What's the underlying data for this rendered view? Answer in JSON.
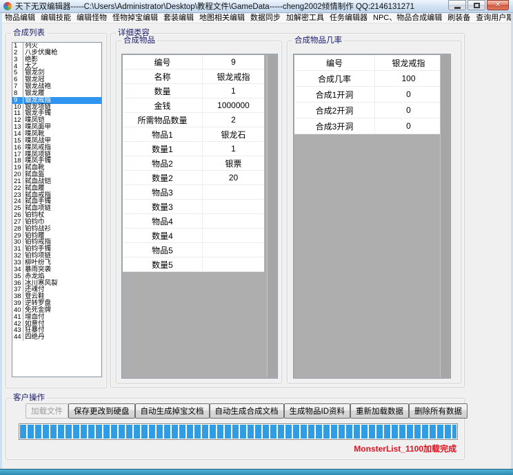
{
  "window": {
    "title": "天下无双编辑器-----C:\\Users\\Administrator\\Desktop\\教程文件\\GameData-----cheng2002倾情制作  QQ:2146131271",
    "controls": [
      {
        "name": "minimize"
      },
      {
        "name": "maximize"
      },
      {
        "name": "close",
        "glyph": "✕"
      }
    ]
  },
  "colors": {
    "titlebar": "#cfe0f2",
    "selection_blue": "#2f94ef",
    "progress_blue": "#2f9de4",
    "status_red": "#e1111e",
    "close_red": "#cf5a40",
    "groupbox_title": "#1b1b6b",
    "grid_gray": "#aeaeae"
  },
  "menu": {
    "items": [
      {
        "label": "物品编辑"
      },
      {
        "label": "编辑技能"
      },
      {
        "label": "编辑怪物"
      },
      {
        "label": "怪物掉宝编辑"
      },
      {
        "label": "套装编辑"
      },
      {
        "label": "地图相关编辑"
      },
      {
        "label": "数据同步"
      },
      {
        "label": "加解密工具"
      },
      {
        "label": "任务编辑器"
      },
      {
        "label": "NPC、物品合成编辑"
      },
      {
        "label": "刷装备"
      },
      {
        "label": "查询用户期限"
      }
    ]
  },
  "synthesis_list": {
    "title": "合成列表",
    "selected_number": 9,
    "items": [
      {
        "num": 1,
        "name": "列火"
      },
      {
        "num": 2,
        "name": "八步伏魔枪"
      },
      {
        "num": 3,
        "name": "绝影"
      },
      {
        "num": 4,
        "name": "太乙"
      },
      {
        "num": 5,
        "name": "银龙剑"
      },
      {
        "num": 6,
        "name": "银龙冠"
      },
      {
        "num": 7,
        "name": "银龙战袍"
      },
      {
        "num": 8,
        "name": "银龙履"
      },
      {
        "num": 9,
        "name": "银龙戒指",
        "selected": true
      },
      {
        "num": 10,
        "name": "银龙项链"
      },
      {
        "num": 11,
        "name": "银龙手镯"
      },
      {
        "num": 12,
        "name": "喋凤铠"
      },
      {
        "num": 13,
        "name": "喋凤面甲"
      },
      {
        "num": 14,
        "name": "喋凤靴"
      },
      {
        "num": 15,
        "name": "喋凤战甲"
      },
      {
        "num": 16,
        "name": "喋凤戒指"
      },
      {
        "num": 17,
        "name": "喋凤项链"
      },
      {
        "num": 18,
        "name": "喋凤手镯"
      },
      {
        "num": 19,
        "name": "弑血靴"
      },
      {
        "num": 20,
        "name": "弑血盔"
      },
      {
        "num": 21,
        "name": "弑血战铠"
      },
      {
        "num": 22,
        "name": "弑血履"
      },
      {
        "num": 23,
        "name": "弑血戒指"
      },
      {
        "num": 24,
        "name": "弑血手镯"
      },
      {
        "num": 25,
        "name": "弑血项链"
      },
      {
        "num": 26,
        "name": "铂钧杖"
      },
      {
        "num": 27,
        "name": "铂钧巾"
      },
      {
        "num": 28,
        "name": "铂钧战衫"
      },
      {
        "num": 29,
        "name": "铂钧履"
      },
      {
        "num": 30,
        "name": "铂钧戒指"
      },
      {
        "num": 31,
        "name": "铂钧手镯"
      },
      {
        "num": 32,
        "name": "铂钧项链"
      },
      {
        "num": 33,
        "name": "柳叶纷飞"
      },
      {
        "num": 34,
        "name": "暴雨突袭"
      },
      {
        "num": 35,
        "name": "赤龙焰"
      },
      {
        "num": 36,
        "name": "冰川寒风裂"
      },
      {
        "num": 37,
        "name": "还魂付"
      },
      {
        "num": 38,
        "name": "登云鞋"
      },
      {
        "num": 39,
        "name": "逆转罗盘"
      },
      {
        "num": 40,
        "name": "免死金牌"
      },
      {
        "num": 41,
        "name": "增血付"
      },
      {
        "num": 42,
        "name": "如意付"
      },
      {
        "num": 43,
        "name": "狂暴付"
      },
      {
        "num": 44,
        "name": "四绝丹"
      }
    ]
  },
  "detail": {
    "title": "详细类容",
    "item_group": {
      "title": "合成物品",
      "rows": [
        {
          "label": "编号",
          "value": "9"
        },
        {
          "label": "名称",
          "value": "银龙戒指"
        },
        {
          "label": "数量",
          "value": "1"
        },
        {
          "label": "金钱",
          "value": "1000000"
        },
        {
          "label": "所需物品数量",
          "value": "2"
        },
        {
          "label": "物品1",
          "value": "银龙石"
        },
        {
          "label": "数量1",
          "value": "1"
        },
        {
          "label": "物品2",
          "value": "银票"
        },
        {
          "label": "数量2",
          "value": "20"
        },
        {
          "label": "物品3",
          "value": ""
        },
        {
          "label": "数量3",
          "value": ""
        },
        {
          "label": "物品4",
          "value": ""
        },
        {
          "label": "数量4",
          "value": ""
        },
        {
          "label": "物品5",
          "value": ""
        },
        {
          "label": "数量5",
          "value": ""
        }
      ]
    },
    "chance_group": {
      "title": "合成物品几率",
      "rows": [
        {
          "label": "编号",
          "value": "银龙戒指"
        },
        {
          "label": "合成几率",
          "value": "100"
        },
        {
          "label": "合成1开洞",
          "value": "0"
        },
        {
          "label": "合成2开洞",
          "value": "0"
        },
        {
          "label": "合成3开洞",
          "value": "0"
        }
      ]
    }
  },
  "client_ops": {
    "title": "客户操作",
    "buttons": [
      {
        "label": "加载文件",
        "enabled": false
      },
      {
        "label": "保存更改到硬盘",
        "enabled": true
      },
      {
        "label": "自动生成掉宝文档",
        "enabled": true
      },
      {
        "label": "自动生成合成文档",
        "enabled": true
      },
      {
        "label": "生成物品ID资料",
        "enabled": true
      },
      {
        "label": "重新加载数据",
        "enabled": true
      },
      {
        "label": "删除所有数据",
        "enabled": true
      }
    ],
    "progress_percent": 100,
    "status": "MonsterList_1100加载完成"
  }
}
